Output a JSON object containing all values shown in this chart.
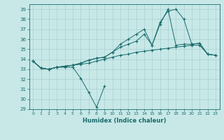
{
  "xlabel": "Humidex (Indice chaleur)",
  "xlim": [
    -0.5,
    23.5
  ],
  "ylim": [
    29,
    39.5
  ],
  "yticks": [
    29,
    30,
    31,
    32,
    33,
    34,
    35,
    36,
    37,
    38,
    39
  ],
  "xticks": [
    0,
    1,
    2,
    3,
    4,
    5,
    6,
    7,
    8,
    9,
    10,
    11,
    12,
    13,
    14,
    15,
    16,
    17,
    18,
    19,
    20,
    21,
    22,
    23
  ],
  "bg_color": "#c8e8e8",
  "line_color": "#1a6b6b",
  "grid_color": "#a8d0d0",
  "lines": [
    {
      "x": [
        0,
        1,
        2,
        3,
        4,
        5,
        6,
        7,
        8,
        9
      ],
      "y": [
        33.8,
        33.1,
        33.0,
        33.2,
        33.2,
        33.2,
        32.1,
        30.7,
        29.2,
        31.3
      ]
    },
    {
      "x": [
        0,
        1,
        2,
        3,
        4,
        5,
        6,
        7,
        8,
        9,
        10,
        11,
        12,
        13,
        14,
        15,
        16,
        17,
        18,
        19,
        20,
        21,
        22,
        23
      ],
      "y": [
        33.8,
        33.1,
        33.0,
        33.2,
        33.3,
        33.4,
        33.5,
        33.6,
        33.8,
        34.0,
        34.2,
        34.4,
        34.5,
        34.7,
        34.8,
        34.9,
        35.0,
        35.1,
        35.2,
        35.3,
        35.4,
        35.4,
        34.5,
        34.4
      ]
    },
    {
      "x": [
        0,
        1,
        2,
        3,
        4,
        5,
        6,
        7,
        8,
        9,
        10,
        11,
        12,
        13,
        14,
        15,
        16,
        17,
        18,
        19,
        20,
        21,
        22,
        23
      ],
      "y": [
        33.8,
        33.1,
        33.0,
        33.2,
        33.3,
        33.4,
        33.6,
        33.9,
        34.1,
        34.2,
        34.7,
        35.2,
        35.5,
        35.8,
        36.5,
        35.4,
        37.5,
        39.0,
        35.4,
        35.5,
        35.5,
        35.6,
        34.5,
        34.4
      ]
    },
    {
      "x": [
        0,
        1,
        2,
        3,
        4,
        5,
        6,
        7,
        8,
        9,
        10,
        11,
        12,
        13,
        14,
        15,
        16,
        17,
        18,
        19,
        20,
        21,
        22,
        23
      ],
      "y": [
        33.8,
        33.1,
        33.0,
        33.2,
        33.3,
        33.4,
        33.6,
        33.9,
        34.1,
        34.2,
        34.7,
        35.5,
        36.0,
        36.5,
        37.0,
        35.4,
        37.7,
        38.8,
        39.0,
        38.0,
        35.5,
        35.6,
        34.5,
        34.4
      ]
    }
  ]
}
